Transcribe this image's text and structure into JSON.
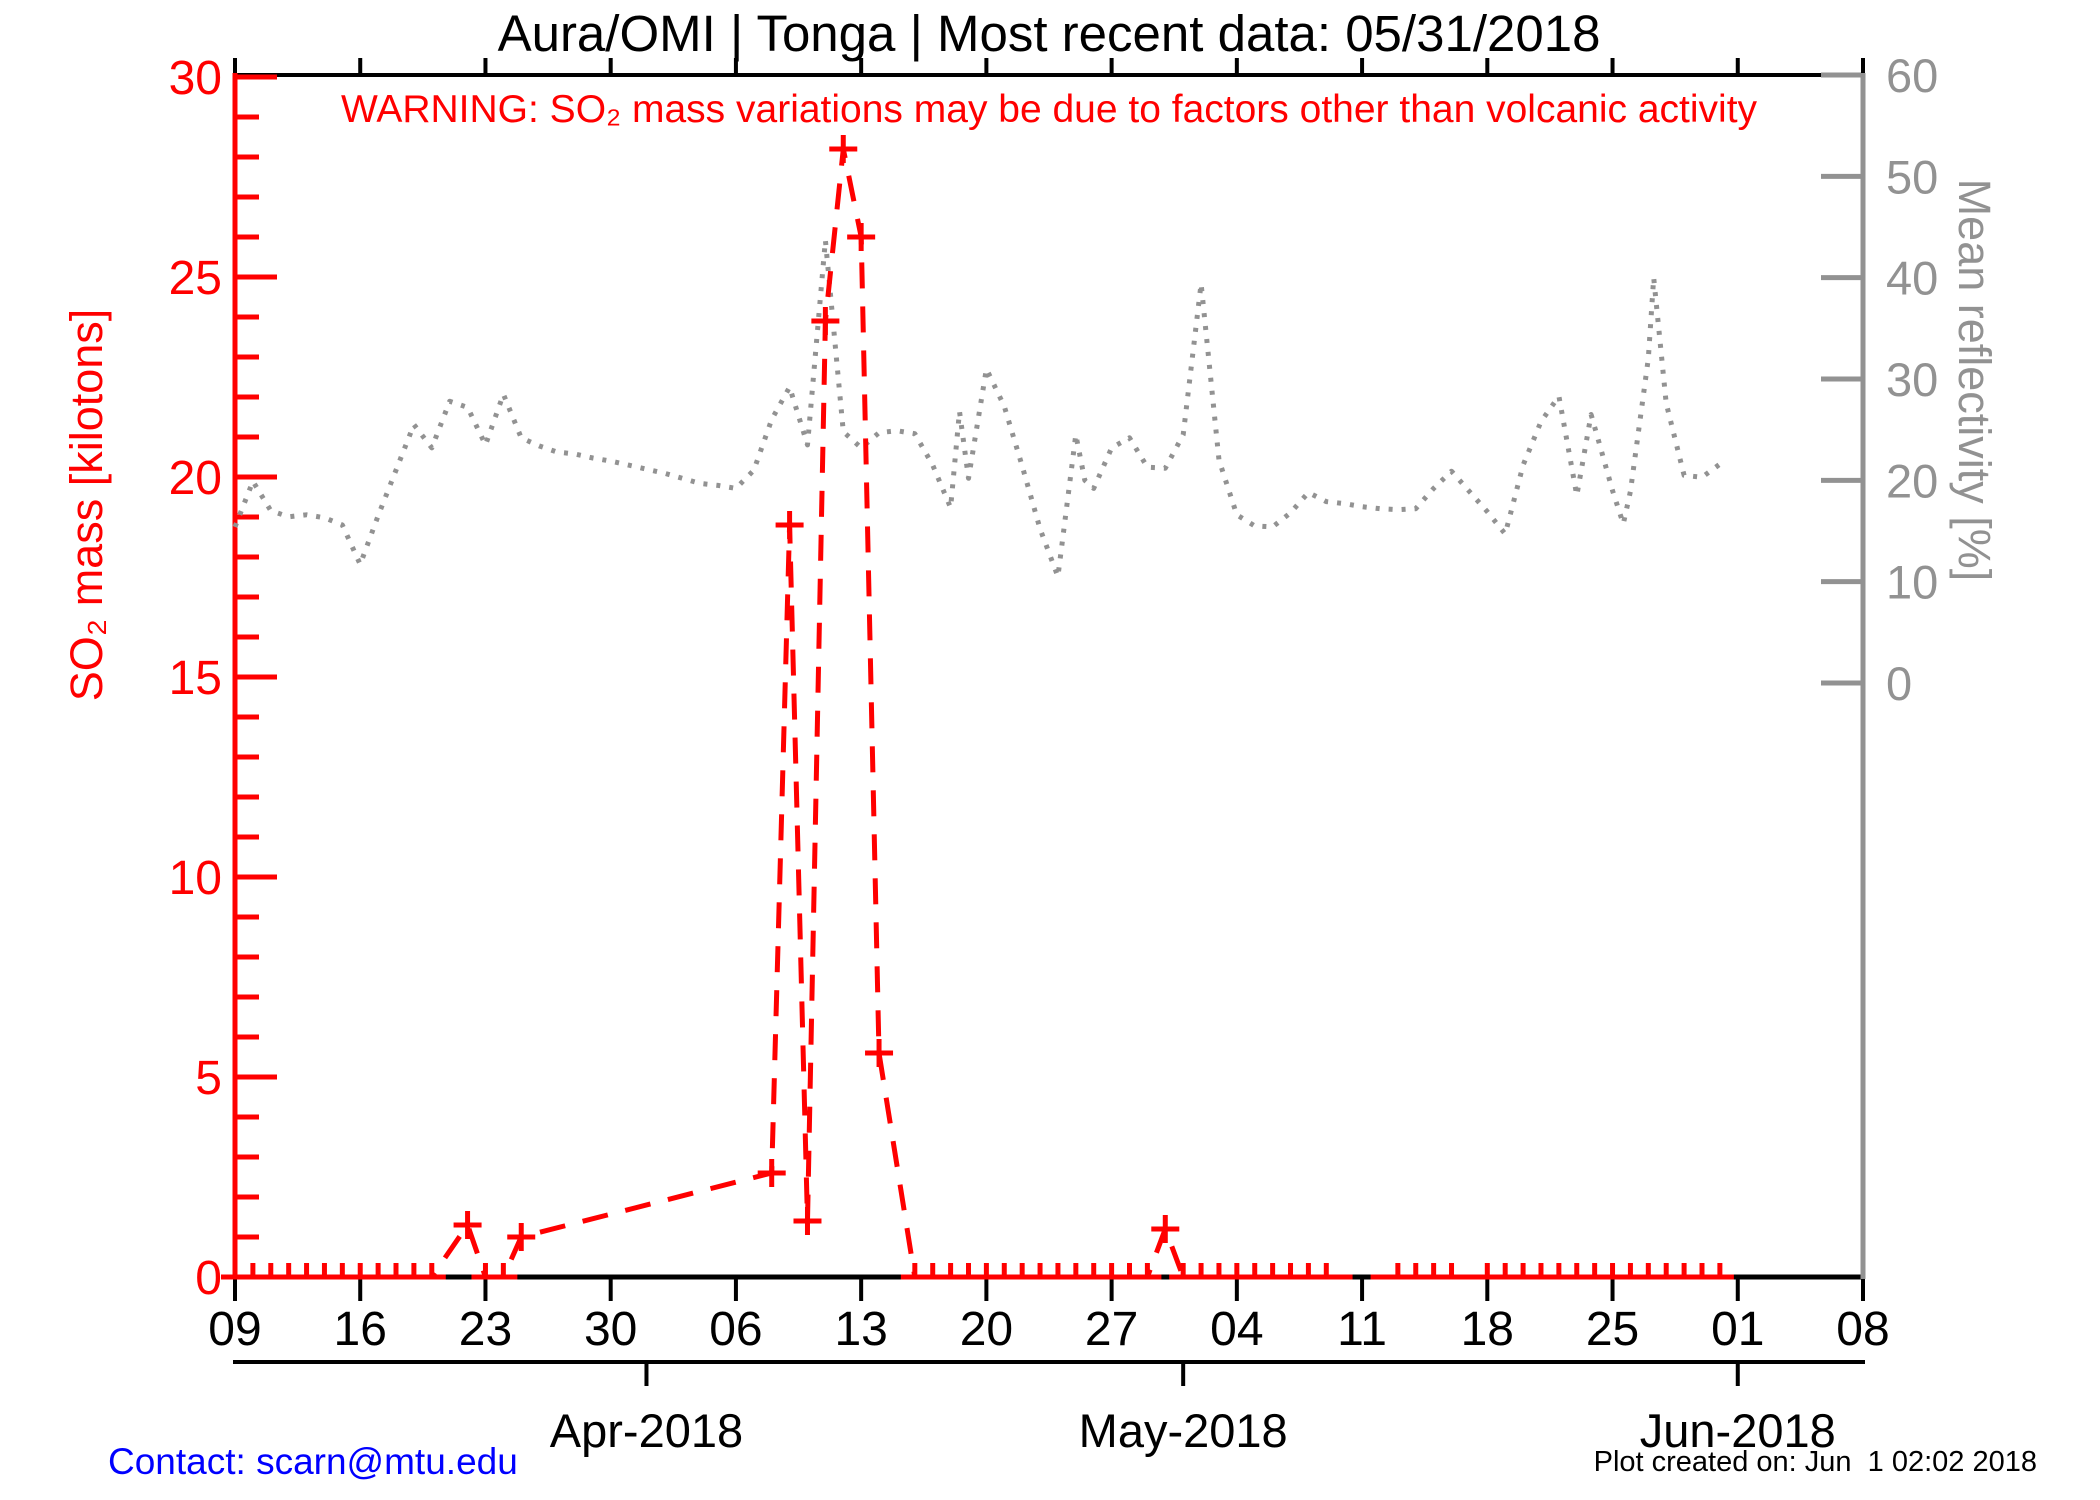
{
  "header": {
    "title": "Aura/OMI | Tonga | Most recent data: 05/31/2018"
  },
  "warning_text": "WARNING: SO₂ mass variations may be due to factors other than volcanic activity",
  "footer": {
    "contact": "Contact: scarn@mtu.edu",
    "created": "Plot created on: Jun  1 02:02 2018"
  },
  "colors": {
    "so2": "#ff0000",
    "reflectivity": "#929292",
    "axis": "#000000",
    "contact_link": "#0000ff",
    "background": "#ffffff"
  },
  "chart_data": {
    "type": "line",
    "title": "Aura/OMI | Tonga | Most recent data: 05/31/2018",
    "annotation": "WARNING: SO₂ mass variations may be due to factors other than volcanic activity",
    "x_axis": {
      "start_date": "2018-03-09",
      "end_date": "2018-06-08",
      "total_days": 91,
      "tick_interval_days": 7,
      "tick_labels": [
        "09",
        "16",
        "23",
        "30",
        "06",
        "13",
        "20",
        "27",
        "04",
        "11",
        "18",
        "25",
        "01",
        "08"
      ],
      "month_labels": [
        {
          "label": "Apr-2018",
          "day": 23
        },
        {
          "label": "May-2018",
          "day": 53
        },
        {
          "label": "Jun-2018",
          "day": 84
        }
      ]
    },
    "left_axis": {
      "label": "SO₂ mass [kilotons]",
      "range": [
        0,
        30
      ],
      "major_tick_step": 5,
      "minor_tick_step": 1,
      "tick_labels": [
        "0",
        "5",
        "10",
        "15",
        "20",
        "25",
        "30"
      ],
      "color": "#ff0000"
    },
    "right_axis": {
      "label": "Mean reflectivity [%]",
      "range": [
        0,
        60
      ],
      "major_tick_step": 10,
      "tick_labels": [
        "0",
        "10",
        "20",
        "30",
        "40",
        "50",
        "60"
      ],
      "color": "#929292"
    },
    "legend": "none",
    "grid": false,
    "series": [
      {
        "name": "SO2 mass",
        "axis": "left",
        "units": "kilotons",
        "style": "dashed",
        "marker": "plus",
        "color": "#ff0000",
        "points": [
          [
            0,
            0
          ],
          [
            1,
            0
          ],
          [
            2,
            0
          ],
          [
            3,
            0
          ],
          [
            4,
            0
          ],
          [
            5,
            0
          ],
          [
            6,
            0
          ],
          [
            7,
            0
          ],
          [
            8,
            0
          ],
          [
            9,
            0
          ],
          [
            10,
            0
          ],
          [
            11,
            0
          ],
          [
            13,
            1.3
          ],
          [
            14,
            0
          ],
          [
            15,
            0
          ],
          [
            16,
            1.0
          ],
          [
            30,
            2.6
          ],
          [
            31,
            18.8
          ],
          [
            32,
            1.4
          ],
          [
            33,
            23.9
          ],
          [
            34,
            28.2
          ],
          [
            35,
            26.0
          ],
          [
            36,
            5.6
          ],
          [
            38,
            0
          ],
          [
            39,
            0
          ],
          [
            40,
            0
          ],
          [
            41,
            0
          ],
          [
            42,
            0
          ],
          [
            43,
            0
          ],
          [
            44,
            0
          ],
          [
            45,
            0
          ],
          [
            46,
            0
          ],
          [
            47,
            0
          ],
          [
            48,
            0
          ],
          [
            49,
            0
          ],
          [
            50,
            0
          ],
          [
            51,
            0
          ],
          [
            52,
            1.2
          ],
          [
            53,
            0
          ],
          [
            54,
            0
          ],
          [
            55,
            0
          ],
          [
            56,
            0
          ],
          [
            57,
            0
          ],
          [
            58,
            0
          ],
          [
            59,
            0
          ],
          [
            60,
            0
          ],
          [
            61,
            0
          ],
          [
            65,
            0
          ],
          [
            66,
            0
          ],
          [
            67,
            0
          ],
          [
            68,
            0
          ],
          [
            70,
            0
          ],
          [
            71,
            0
          ],
          [
            72,
            0
          ],
          [
            73,
            0
          ],
          [
            74,
            0
          ],
          [
            75,
            0
          ],
          [
            76,
            0
          ],
          [
            77,
            0
          ],
          [
            78,
            0
          ],
          [
            79,
            0
          ],
          [
            80,
            0
          ],
          [
            81,
            0
          ],
          [
            82,
            0
          ],
          [
            83,
            0
          ]
        ]
      },
      {
        "name": "Mean reflectivity",
        "axis": "right",
        "units": "%",
        "style": "dotted",
        "marker": "none",
        "color": "#929292",
        "points": [
          [
            0,
            15.4
          ],
          [
            1,
            19.9
          ],
          [
            2,
            17.0
          ],
          [
            3,
            16.4
          ],
          [
            4,
            16.6
          ],
          [
            5,
            16.3
          ],
          [
            6,
            15.6
          ],
          [
            7,
            11.7
          ],
          [
            8,
            16.5
          ],
          [
            9,
            21.0
          ],
          [
            10,
            25.5
          ],
          [
            11,
            23.2
          ],
          [
            12,
            27.8
          ],
          [
            13,
            27.2
          ],
          [
            14,
            23.5
          ],
          [
            15,
            28.5
          ],
          [
            16,
            24.2
          ],
          [
            17,
            23.4
          ],
          [
            18,
            22.8
          ],
          [
            19,
            22.6
          ],
          [
            20,
            22.2
          ],
          [
            21,
            21.9
          ],
          [
            22,
            21.5
          ],
          [
            23,
            21.1
          ],
          [
            24,
            20.7
          ],
          [
            25,
            20.2
          ],
          [
            26,
            19.7
          ],
          [
            27,
            19.5
          ],
          [
            28,
            19.2
          ],
          [
            29,
            21.0
          ],
          [
            30,
            26.0
          ],
          [
            31,
            29.2
          ],
          [
            32,
            23.5
          ],
          [
            33,
            43.7
          ],
          [
            34,
            24.8
          ],
          [
            35,
            23.2
          ],
          [
            36,
            24.7
          ],
          [
            37,
            24.9
          ],
          [
            38,
            24.6
          ],
          [
            39,
            21.5
          ],
          [
            40,
            17.3
          ],
          [
            40.5,
            26.8
          ],
          [
            41,
            20.2
          ],
          [
            42,
            31.0
          ],
          [
            43,
            27.3
          ],
          [
            44,
            21.4
          ],
          [
            45,
            15.2
          ],
          [
            46,
            10.5
          ],
          [
            47,
            24.5
          ],
          [
            47.5,
            20.0
          ],
          [
            48,
            19.2
          ],
          [
            49,
            23.2
          ],
          [
            50,
            24.2
          ],
          [
            51,
            21.3
          ],
          [
            52,
            21.2
          ],
          [
            53,
            24.5
          ],
          [
            54,
            39.4
          ],
          [
            55,
            22.0
          ],
          [
            56,
            16.6
          ],
          [
            57,
            15.5
          ],
          [
            58,
            15.4
          ],
          [
            59,
            16.8
          ],
          [
            60,
            18.8
          ],
          [
            61,
            17.9
          ],
          [
            62,
            17.7
          ],
          [
            63,
            17.4
          ],
          [
            64,
            17.2
          ],
          [
            65,
            17.1
          ],
          [
            66,
            17.2
          ],
          [
            67,
            19.2
          ],
          [
            68,
            20.9
          ],
          [
            69,
            18.9
          ],
          [
            70,
            16.9
          ],
          [
            71,
            14.7
          ],
          [
            72,
            21.5
          ],
          [
            73,
            25.8
          ],
          [
            74,
            28.3
          ],
          [
            75,
            18.5
          ],
          [
            75.8,
            26.5
          ],
          [
            76.3,
            23.4
          ],
          [
            77,
            19.0
          ],
          [
            77.6,
            15.7
          ],
          [
            78,
            18.9
          ],
          [
            79,
            32.0
          ],
          [
            79.3,
            40.0
          ],
          [
            80,
            27.6
          ],
          [
            81,
            20.5
          ],
          [
            82,
            20.3
          ],
          [
            83,
            21.6
          ]
        ]
      }
    ]
  }
}
